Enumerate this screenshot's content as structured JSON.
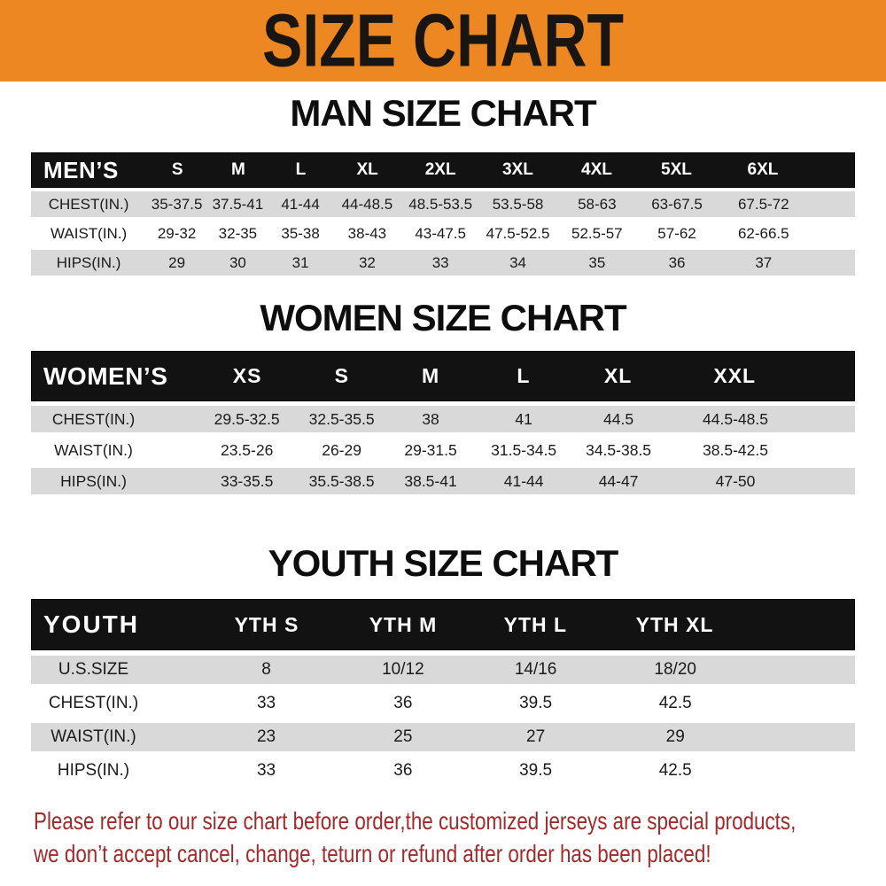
{
  "banner": {
    "title": "SIZE CHART",
    "bg_color": "#ec8721",
    "text_color": "#181513"
  },
  "colors": {
    "table_header_bg": "#121212",
    "row_stripe": "#d9d9d9",
    "footer_text": "#a32a2b"
  },
  "man": {
    "title": "MAN SIZE CHART",
    "corner": "MEN’S",
    "sizes": [
      "S",
      "M",
      "L",
      "XL",
      "2XL",
      "3XL",
      "4XL",
      "5XL",
      "6XL"
    ],
    "rows": [
      {
        "label": "CHEST(IN.)",
        "values": [
          "35-37.5",
          "37.5-41",
          "41-44",
          "44-48.5",
          "48.5-53.5",
          "53.5-58",
          "58-63",
          "63-67.5",
          "67.5-72"
        ]
      },
      {
        "label": "WAIST(IN.)",
        "values": [
          "29-32",
          "32-35",
          "35-38",
          "38-43",
          "43-47.5",
          "47.5-52.5",
          "52.5-57",
          "57-62",
          "62-66.5"
        ]
      },
      {
        "label": "HIPS(IN.)",
        "values": [
          "29",
          "30",
          "31",
          "32",
          "33",
          "34",
          "35",
          "36",
          "37"
        ]
      }
    ]
  },
  "women": {
    "title": "WOMEN SIZE CHART",
    "corner": "WOMEN’S",
    "sizes": [
      "XS",
      "S",
      "M",
      "L",
      "XL",
      "XXL"
    ],
    "rows": [
      {
        "label": "CHEST(IN.)",
        "values": [
          "29.5-32.5",
          "32.5-35.5",
          "38",
          "41",
          "44.5",
          "44.5-48.5"
        ]
      },
      {
        "label": "WAIST(IN.)",
        "values": [
          "23.5-26",
          "26-29",
          "29-31.5",
          "31.5-34.5",
          "34.5-38.5",
          "38.5-42.5"
        ]
      },
      {
        "label": "HIPS(IN.)",
        "values": [
          "33-35.5",
          "35.5-38.5",
          "38.5-41",
          "41-44",
          "44-47",
          "47-50"
        ]
      }
    ]
  },
  "youth": {
    "title": "YOUTH SIZE CHART",
    "corner": "YOUTH",
    "sizes": [
      "YTH S",
      "YTH M",
      "YTH L",
      "YTH XL"
    ],
    "rows": [
      {
        "label": "U.S.SIZE",
        "values": [
          "8",
          "10/12",
          "14/16",
          "18/20"
        ]
      },
      {
        "label": "CHEST(IN.)",
        "values": [
          "33",
          "36",
          "39.5",
          "42.5"
        ]
      },
      {
        "label": "WAIST(IN.)",
        "values": [
          "23",
          "25",
          "27",
          "29"
        ]
      },
      {
        "label": "HIPS(IN.)",
        "values": [
          "33",
          "36",
          "39.5",
          "42.5"
        ]
      }
    ]
  },
  "footer": {
    "line1": "Please refer to our size chart before order,the customized jerseys are special products,",
    "line2": "we don’t accept cancel, change, teturn or refund after order has been placed!"
  }
}
